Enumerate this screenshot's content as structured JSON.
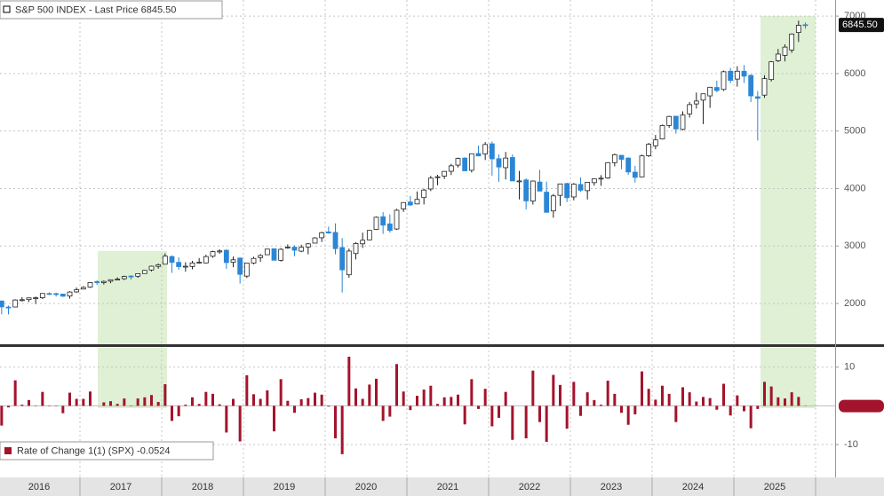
{
  "chart_data": [
    {
      "type": "candlestick",
      "series": {
        "name": "S&P 500 INDEX - Last Price",
        "last_label": "6845.50",
        "open": [
          2044,
          1937,
          1938,
          2057,
          2067,
          2094,
          2100,
          2173,
          2171,
          2164,
          2129,
          2201,
          2251,
          2285,
          2381,
          2362,
          2388,
          2415,
          2431,
          2477,
          2474,
          2521,
          2583,
          2646,
          2683,
          2816,
          2715,
          2634,
          2643,
          2718,
          2705,
          2821,
          2897,
          2926,
          2717,
          2790,
          2476,
          2703,
          2798,
          2848,
          2952,
          2751,
          2971,
          2980,
          2910,
          2983,
          3050,
          3144,
          3245,
          3236,
          2974,
          2499,
          2869,
          3038,
          3106,
          3289,
          3508,
          3385,
          3296,
          3645,
          3765,
          3732,
          3842,
          3992,
          4191,
          4216,
          4300,
          4407,
          4529,
          4317,
          4610,
          4602,
          4778,
          4519,
          4363,
          4540,
          4130,
          4149,
          3781,
          4113,
          3937,
          3610,
          3881,
          4087,
          3853,
          4071,
          3963,
          4102,
          4166,
          4183,
          4450,
          4578,
          4530,
          4285,
          4202,
          4570,
          4743,
          4862,
          5098,
          5258,
          5029,
          5298,
          5472,
          5538,
          5612,
          5758,
          5724,
          6041,
          5904,
          6041,
          5969,
          5597,
          5625,
          5896,
          6224,
          6317,
          6410,
          6715,
          6850
        ],
        "high": [
          2044,
          1963,
          2072,
          2111,
          2103,
          2120,
          2178,
          2193,
          2188,
          2169,
          2214,
          2278,
          2301,
          2371,
          2401,
          2398,
          2418,
          2454,
          2484,
          2491,
          2519,
          2582,
          2658,
          2695,
          2873,
          2835,
          2801,
          2718,
          2742,
          2791,
          2848,
          2916,
          2941,
          2940,
          2816,
          2800,
          2708,
          2813,
          2860,
          2950,
          2955,
          2964,
          3028,
          3014,
          3022,
          3050,
          3155,
          3248,
          3338,
          3394,
          3137,
          2955,
          3068,
          3233,
          3280,
          3514,
          3588,
          3550,
          3646,
          3760,
          3870,
          3950,
          3995,
          4219,
          4238,
          4302,
          4430,
          4538,
          4545,
          4608,
          4744,
          4808,
          4819,
          4595,
          4637,
          4593,
          4307,
          4178,
          4140,
          4325,
          4120,
          3906,
          4080,
          4101,
          4095,
          4195,
          4110,
          4170,
          4232,
          4458,
          4607,
          4584,
          4541,
          4394,
          4588,
          4794,
          4932,
          5112,
          5265,
          5264,
          5342,
          5506,
          5670,
          5651,
          5768,
          5878,
          6053,
          6100,
          6128,
          6147,
          5987,
          5696,
          5969,
          6216,
          6428,
          6508,
          6700,
          6920,
          6890
        ],
        "low": [
          1812,
          1810,
          1937,
          2034,
          2025,
          1992,
          2075,
          2147,
          2120,
          2114,
          2084,
          2187,
          2245,
          2271,
          2322,
          2329,
          2353,
          2406,
          2408,
          2417,
          2446,
          2520,
          2557,
          2605,
          2683,
          2533,
          2586,
          2553,
          2595,
          2691,
          2698,
          2796,
          2864,
          2604,
          2631,
          2347,
          2443,
          2681,
          2723,
          2848,
          2750,
          2729,
          2952,
          2822,
          2892,
          2856,
          3050,
          3070,
          3214,
          2855,
          2192,
          2447,
          2767,
          2966,
          3102,
          3280,
          3210,
          3233,
          3280,
          3594,
          3695,
          3725,
          3723,
          3955,
          4057,
          4165,
          4234,
          4367,
          4305,
          4279,
          4561,
          4495,
          4223,
          4115,
          4157,
          4132,
          3811,
          3637,
          3721,
          3955,
          3585,
          3492,
          3699,
          3764,
          3794,
          3944,
          3809,
          4049,
          4048,
          4166,
          4385,
          4336,
          4238,
          4104,
          4197,
          4547,
          4683,
          4853,
          5057,
          4954,
          5011,
          5235,
          5391,
          5120,
          5403,
          5675,
          5697,
          5833,
          5773,
          5837,
          5505,
          4835,
          5578,
          5862,
          6201,
          6212,
          6360,
          6550,
          6780
        ],
        "close": [
          1940,
          1932,
          2060,
          2065,
          2097,
          2099,
          2174,
          2171,
          2168,
          2126,
          2199,
          2239,
          2279,
          2364,
          2363,
          2384,
          2412,
          2423,
          2470,
          2472,
          2519,
          2575,
          2648,
          2674,
          2824,
          2714,
          2641,
          2648,
          2705,
          2718,
          2816,
          2902,
          2914,
          2712,
          2760,
          2507,
          2704,
          2784,
          2834,
          2946,
          2752,
          2942,
          2980,
          2926,
          2977,
          3038,
          3141,
          3231,
          3226,
          2954,
          2585,
          2912,
          3044,
          3100,
          3271,
          3500,
          3363,
          3270,
          3622,
          3756,
          3714,
          3811,
          3973,
          4181,
          4204,
          4298,
          4395,
          4523,
          4308,
          4605,
          4567,
          4766,
          4516,
          4374,
          4530,
          4132,
          4132,
          3785,
          4130,
          3955,
          3586,
          3872,
          4080,
          3840,
          4077,
          3970,
          4109,
          4169,
          4180,
          4450,
          4589,
          4508,
          4288,
          4194,
          4568,
          4770,
          4846,
          5096,
          5254,
          5036,
          5278,
          5460,
          5522,
          5648,
          5762,
          5705,
          6032,
          5882,
          6041,
          5955,
          5612,
          5569,
          5912,
          6205,
          6339,
          6460,
          6688,
          6840,
          6845.5
        ]
      },
      "up_color": "#ffffff",
      "down_color": "#2b86d6",
      "ylim": [
        1290,
        7280
      ],
      "yticks": [
        2000,
        3000,
        4000,
        5000,
        6000,
        7000
      ],
      "grid": true
    },
    {
      "type": "bar",
      "series": [
        {
          "name": "Rate of Change 1(1) (SPX)",
          "color": "#a3142c",
          "values": [
            -5.1,
            -0.4,
            6.6,
            0.3,
            1.5,
            0.1,
            3.6,
            -0.1,
            -0.1,
            -1.9,
            3.4,
            1.8,
            1.8,
            3.7,
            0.0,
            0.9,
            1.2,
            0.5,
            1.9,
            0.1,
            1.9,
            2.2,
            2.8,
            1.0,
            5.6,
            -3.9,
            -2.7,
            0.3,
            2.2,
            0.5,
            3.6,
            3.1,
            0.4,
            -6.9,
            1.8,
            -9.2,
            7.9,
            3.0,
            1.8,
            4.0,
            -6.6,
            6.9,
            1.3,
            -1.8,
            1.7,
            2.0,
            3.4,
            2.9,
            -0.2,
            -8.4,
            -12.5,
            12.7,
            4.5,
            1.8,
            5.5,
            7.0,
            -3.9,
            -2.8,
            10.8,
            3.7,
            -1.1,
            2.6,
            4.2,
            5.2,
            0.5,
            2.2,
            2.3,
            2.9,
            -4.8,
            6.9,
            -0.8,
            4.4,
            -5.3,
            -3.1,
            3.6,
            -8.8,
            0.0,
            -8.4,
            9.1,
            -4.2,
            -9.3,
            8.0,
            5.4,
            -5.9,
            6.2,
            -2.6,
            3.5,
            1.5,
            0.3,
            6.5,
            3.1,
            -1.8,
            -4.9,
            -2.2,
            8.9,
            4.4,
            1.6,
            5.2,
            3.1,
            -4.2,
            4.8,
            3.5,
            1.1,
            2.3,
            2.0,
            -1.0,
            5.7,
            -2.5,
            2.7,
            -1.4,
            -5.8,
            -0.8,
            6.2,
            5.0,
            2.2,
            1.9,
            3.5,
            2.3,
            -0.0524
          ]
        }
      ],
      "ylim": [
        -16.2,
        15
      ],
      "yticks": [
        -10,
        10
      ],
      "xtick_labels": [
        "2016",
        "2017",
        "2018",
        "2019",
        "2020",
        "2021",
        "2022",
        "2023",
        "2024",
        "2025"
      ]
    }
  ]
}
